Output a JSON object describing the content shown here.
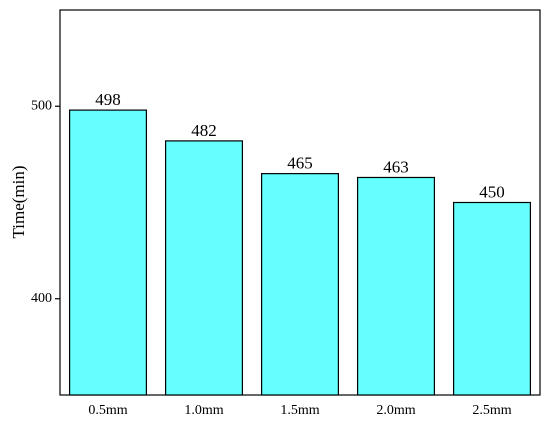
{
  "chart_data": {
    "type": "bar",
    "y_label": "Time(min)",
    "categories": [
      "0.5mm",
      "1.0mm",
      "1.5mm",
      "2.0mm",
      "2.5mm"
    ],
    "values": [
      498,
      482,
      465,
      463,
      450
    ],
    "color": "#66ffff",
    "ylim": [
      350,
      550
    ],
    "yticks": [
      400,
      500
    ],
    "grid": false
  }
}
